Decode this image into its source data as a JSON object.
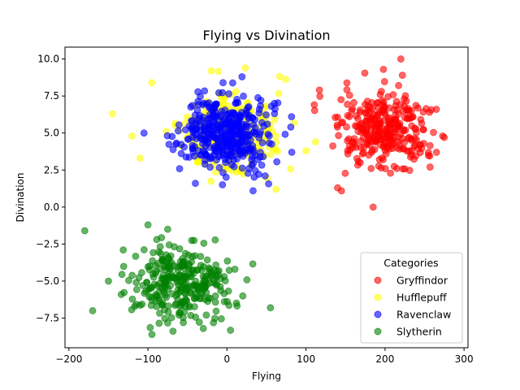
{
  "chart_data": {
    "type": "scatter",
    "title": "Flying vs Divination",
    "xlabel": "Flying",
    "ylabel": "Divination",
    "xlim": [
      -205,
      305
    ],
    "ylim": [
      -9.5,
      10.8
    ],
    "xticks": [
      -200,
      -100,
      0,
      100,
      200,
      300
    ],
    "yticks": [
      -7.5,
      -5.0,
      -2.5,
      0.0,
      2.5,
      5.0,
      7.5,
      10.0
    ],
    "grid": false,
    "legend": {
      "title": "Categories",
      "placement": "lower-right"
    },
    "series": [
      {
        "name": "Gryffindor",
        "color": "#ff0000",
        "cluster": {
          "cx": 200,
          "cy": 5.0,
          "sx": 28,
          "sy": 1.3,
          "n": 300
        },
        "points": [
          [
            220,
            10.0
          ],
          [
            198,
            9.3
          ],
          [
            222,
            8.9
          ],
          [
            185,
            0.0
          ],
          [
            117,
            7.9
          ],
          [
            200,
            4.3
          ],
          [
            265,
            6.6
          ],
          [
            140,
            1.3
          ],
          [
            257,
            2.7
          ],
          [
            275,
            4.7
          ]
        ]
      },
      {
        "name": "Hufflepuff",
        "color": "#ffff00",
        "cluster": {
          "cx": 0,
          "cy": 5.0,
          "sx": 30,
          "sy": 1.3,
          "n": 300
        },
        "points": [
          [
            -145,
            6.3
          ],
          [
            -120,
            4.8
          ],
          [
            -95,
            8.4
          ],
          [
            -20,
            9.2
          ],
          [
            23,
            9.4
          ],
          [
            62,
            1.2
          ],
          [
            100,
            3.8
          ],
          [
            112,
            4.4
          ],
          [
            -110,
            3.3
          ],
          [
            85,
            5.7
          ]
        ]
      },
      {
        "name": "Ravenclaw",
        "color": "#0000ff",
        "cluster": {
          "cx": 0,
          "cy": 5.0,
          "sx": 26,
          "sy": 1.2,
          "n": 400
        },
        "points": [
          [
            -105,
            5.0
          ],
          [
            -40,
            1.6
          ],
          [
            33,
            1.1
          ],
          [
            82,
            3.7
          ],
          [
            -5,
            8.4
          ],
          [
            60,
            7.0
          ]
        ]
      },
      {
        "name": "Slytherin",
        "color": "#008000",
        "cluster": {
          "cx": -60,
          "cy": -5.0,
          "sx": 30,
          "sy": 1.3,
          "n": 300
        },
        "points": [
          [
            -180,
            -1.6
          ],
          [
            -150,
            -5.0
          ],
          [
            -100,
            -1.2
          ],
          [
            -95,
            -8.6
          ],
          [
            -30,
            -8.2
          ],
          [
            55,
            -6.8
          ],
          [
            10,
            -4.2
          ],
          [
            -170,
            -7.0
          ],
          [
            -75,
            -1.5
          ],
          [
            20,
            -6.0
          ]
        ]
      }
    ]
  }
}
